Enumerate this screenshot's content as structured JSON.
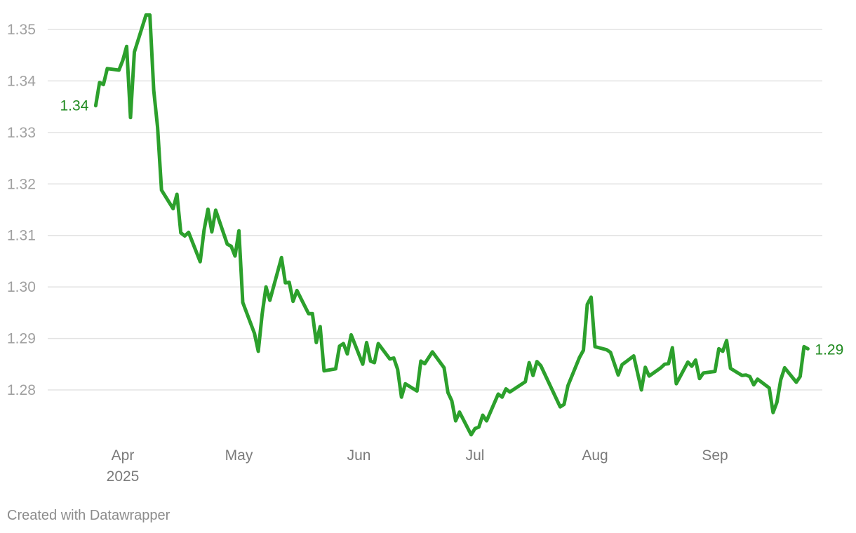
{
  "chart_data": {
    "type": "line",
    "title": "",
    "xlabel": "",
    "ylabel": "",
    "ylim": [
      1.27,
      1.354
    ],
    "yticks": [
      "1.35",
      "1.34",
      "1.33",
      "1.32",
      "1.31",
      "1.30",
      "1.29",
      "1.28"
    ],
    "ytick_values": [
      1.35,
      1.34,
      1.33,
      1.32,
      1.31,
      1.3,
      1.29,
      1.28
    ],
    "xticks": [
      {
        "label": "Apr",
        "sublabel": "2025",
        "date": "2025-04-01"
      },
      {
        "label": "May",
        "sublabel": "",
        "date": "2025-05-01"
      },
      {
        "label": "Jun",
        "sublabel": "",
        "date": "2025-06-01"
      },
      {
        "label": "Jul",
        "sublabel": "",
        "date": "2025-07-01"
      },
      {
        "label": "Aug",
        "sublabel": "",
        "date": "2025-08-01"
      },
      {
        "label": "Sep",
        "sublabel": "",
        "date": "2025-09-01"
      }
    ],
    "grid": true,
    "line_color": "#2ca02c",
    "series": [
      {
        "start_label": "1.34",
        "end_label": "1.29",
        "points": [
          [
            "2025-03-25",
            1.3352
          ],
          [
            "2025-03-26",
            1.3397
          ],
          [
            "2025-03-27",
            1.3393
          ],
          [
            "2025-03-28",
            1.3424
          ],
          [
            "2025-03-31",
            1.3421
          ],
          [
            "2025-04-01",
            1.344
          ],
          [
            "2025-04-02",
            1.3467
          ],
          [
            "2025-04-03",
            1.3329
          ],
          [
            "2025-04-04",
            1.3456
          ],
          [
            "2025-04-07",
            1.3528
          ],
          [
            "2025-04-08",
            1.3528
          ],
          [
            "2025-04-09",
            1.3382
          ],
          [
            "2025-04-10",
            1.331
          ],
          [
            "2025-04-11",
            1.3188
          ],
          [
            "2025-04-14",
            1.3152
          ],
          [
            "2025-04-15",
            1.318
          ],
          [
            "2025-04-16",
            1.3105
          ],
          [
            "2025-04-17",
            1.3099
          ],
          [
            "2025-04-18",
            1.3106
          ],
          [
            "2025-04-21",
            1.3049
          ],
          [
            "2025-04-22",
            1.311
          ],
          [
            "2025-04-23",
            1.3151
          ],
          [
            "2025-04-24",
            1.3107
          ],
          [
            "2025-04-25",
            1.3149
          ],
          [
            "2025-04-28",
            1.3083
          ],
          [
            "2025-04-29",
            1.3079
          ],
          [
            "2025-04-30",
            1.306
          ],
          [
            "2025-05-01",
            1.3109
          ],
          [
            "2025-05-02",
            1.297
          ],
          [
            "2025-05-05",
            1.291
          ],
          [
            "2025-05-06",
            1.2875
          ],
          [
            "2025-05-07",
            1.2947
          ],
          [
            "2025-05-08",
            1.3
          ],
          [
            "2025-05-09",
            1.2974
          ],
          [
            "2025-05-12",
            1.3057
          ],
          [
            "2025-05-13",
            1.3008
          ],
          [
            "2025-05-14",
            1.3009
          ],
          [
            "2025-05-15",
            1.2972
          ],
          [
            "2025-05-16",
            1.2993
          ],
          [
            "2025-05-19",
            1.2948
          ],
          [
            "2025-05-20",
            1.2948
          ],
          [
            "2025-05-21",
            1.2892
          ],
          [
            "2025-05-22",
            1.2923
          ],
          [
            "2025-05-23",
            1.2837
          ],
          [
            "2025-05-26",
            1.2841
          ],
          [
            "2025-05-27",
            1.2885
          ],
          [
            "2025-05-28",
            1.289
          ],
          [
            "2025-05-29",
            1.287
          ],
          [
            "2025-05-30",
            1.2907
          ],
          [
            "2025-06-02",
            1.285
          ],
          [
            "2025-06-03",
            1.2892
          ],
          [
            "2025-06-04",
            1.2856
          ],
          [
            "2025-06-05",
            1.2853
          ],
          [
            "2025-06-06",
            1.289
          ],
          [
            "2025-06-09",
            1.286
          ],
          [
            "2025-06-10",
            1.2862
          ],
          [
            "2025-06-11",
            1.284
          ],
          [
            "2025-06-12",
            1.2786
          ],
          [
            "2025-06-13",
            1.2812
          ],
          [
            "2025-06-16",
            1.2798
          ],
          [
            "2025-06-17",
            1.2856
          ],
          [
            "2025-06-18",
            1.2851
          ],
          [
            "2025-06-20",
            1.2874
          ],
          [
            "2025-06-23",
            1.2843
          ],
          [
            "2025-06-24",
            1.2795
          ],
          [
            "2025-06-25",
            1.2779
          ],
          [
            "2025-06-26",
            1.274
          ],
          [
            "2025-06-27",
            1.2757
          ],
          [
            "2025-06-30",
            1.2713
          ],
          [
            "2025-07-01",
            1.2725
          ],
          [
            "2025-07-02",
            1.2728
          ],
          [
            "2025-07-03",
            1.2751
          ],
          [
            "2025-07-04",
            1.274
          ],
          [
            "2025-07-07",
            1.2792
          ],
          [
            "2025-07-08",
            1.2786
          ],
          [
            "2025-07-09",
            1.2802
          ],
          [
            "2025-07-10",
            1.2796
          ],
          [
            "2025-07-14",
            1.2816
          ],
          [
            "2025-07-15",
            1.2853
          ],
          [
            "2025-07-16",
            1.2828
          ],
          [
            "2025-07-17",
            1.2855
          ],
          [
            "2025-07-18",
            1.2847
          ],
          [
            "2025-07-23",
            1.2767
          ],
          [
            "2025-07-24",
            1.2772
          ],
          [
            "2025-07-25",
            1.2808
          ],
          [
            "2025-07-28",
            1.2863
          ],
          [
            "2025-07-29",
            1.2877
          ],
          [
            "2025-07-30",
            1.2966
          ],
          [
            "2025-07-31",
            1.298
          ],
          [
            "2025-08-01",
            1.2884
          ],
          [
            "2025-08-04",
            1.2878
          ],
          [
            "2025-08-05",
            1.2873
          ],
          [
            "2025-08-07",
            1.2829
          ],
          [
            "2025-08-08",
            1.2849
          ],
          [
            "2025-08-11",
            1.2866
          ],
          [
            "2025-08-13",
            1.28
          ],
          [
            "2025-08-14",
            1.2844
          ],
          [
            "2025-08-15",
            1.2827
          ],
          [
            "2025-08-18",
            1.2843
          ],
          [
            "2025-08-19",
            1.285
          ],
          [
            "2025-08-20",
            1.2851
          ],
          [
            "2025-08-21",
            1.2882
          ],
          [
            "2025-08-22",
            1.2812
          ],
          [
            "2025-08-25",
            1.2854
          ],
          [
            "2025-08-26",
            1.2846
          ],
          [
            "2025-08-27",
            1.2858
          ],
          [
            "2025-08-28",
            1.2822
          ],
          [
            "2025-08-29",
            1.2833
          ],
          [
            "2025-09-01",
            1.2836
          ],
          [
            "2025-09-02",
            1.288
          ],
          [
            "2025-09-03",
            1.2875
          ],
          [
            "2025-09-04",
            1.2896
          ],
          [
            "2025-09-05",
            1.2842
          ],
          [
            "2025-09-08",
            1.2828
          ],
          [
            "2025-09-09",
            1.2829
          ],
          [
            "2025-09-10",
            1.2826
          ],
          [
            "2025-09-11",
            1.281
          ],
          [
            "2025-09-12",
            1.2821
          ],
          [
            "2025-09-15",
            1.2804
          ],
          [
            "2025-09-16",
            1.2756
          ],
          [
            "2025-09-17",
            1.2776
          ],
          [
            "2025-09-18",
            1.282
          ],
          [
            "2025-09-19",
            1.2843
          ],
          [
            "2025-09-22",
            1.2815
          ],
          [
            "2025-09-23",
            1.2826
          ],
          [
            "2025-09-24",
            1.2884
          ],
          [
            "2025-09-25",
            1.288
          ]
        ]
      }
    ]
  },
  "footer": {
    "credit": "Created with Datawrapper"
  }
}
